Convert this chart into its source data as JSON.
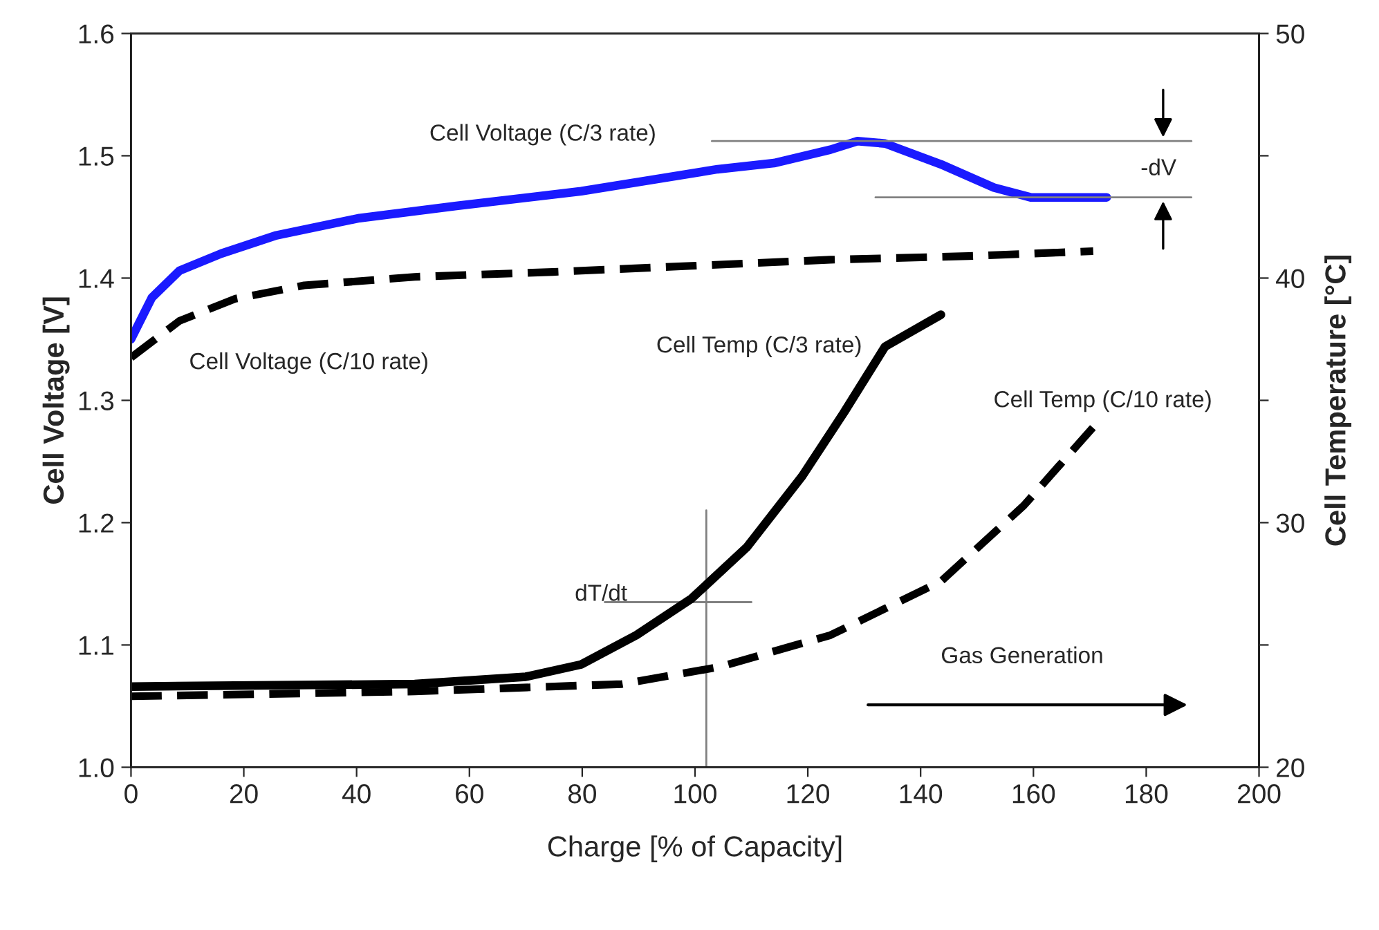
{
  "chart_data": {
    "type": "line",
    "xlabel": "Charge [% of Capacity]",
    "ylabel": "Cell Voltage [V]",
    "y2label": "Cell Temperature [°C]",
    "xlim": [
      0,
      200
    ],
    "xticks": [
      0,
      20,
      40,
      60,
      80,
      100,
      120,
      140,
      160,
      180,
      200
    ],
    "ylim": [
      1.0,
      1.6
    ],
    "yticks": [
      {
        "value": 1.0,
        "label": "1.0"
      },
      1.1,
      1.2,
      1.3,
      1.4,
      1.5,
      1.6
    ],
    "y2lim": [
      20,
      50
    ],
    "y2ticks": [
      20,
      {
        "value": 25,
        "label": null
      },
      30,
      {
        "value": 35,
        "label": null
      },
      40,
      {
        "value": 45,
        "label": null
      },
      50
    ],
    "grid": false,
    "legend": false,
    "marker": "none",
    "series": [
      {
        "name": "Cell Voltage (C/3 rate)",
        "color": "#1a1aff",
        "line_style": "solid",
        "x": [
          0,
          3.7,
          8.6,
          16,
          25.8,
          40.5,
          57.7,
          79.8,
          104,
          114,
          124,
          128.8,
          133.7,
          143.6,
          153,
          159.5,
          173
        ],
        "values": [
          1.35,
          1.384,
          1.406,
          1.42,
          1.435,
          1.449,
          1.459,
          1.471,
          1.489,
          1.494,
          1.505,
          1.512,
          1.51,
          1.493,
          1.474,
          1.466,
          1.466
        ]
      },
      {
        "name": "Cell Voltage (C/10 rate)",
        "color": "#000000",
        "line_style": "dashed",
        "x": [
          0,
          8.6,
          18.4,
          30.7,
          50.3,
          74.8,
          99.4,
          124,
          148.5,
          170.6
        ],
        "values": [
          1.335,
          1.365,
          1.383,
          1.394,
          1.401,
          1.405,
          1.41,
          1.415,
          1.418,
          1.422
        ]
      },
      {
        "name": "Cell Temp (C/3 rate)",
        "color": "#000000",
        "line_style": "solid",
        "axis": "y2",
        "x": [
          0,
          50.3,
          70,
          79.8,
          89.6,
          99.4,
          109.2,
          119,
          126.4,
          133.7,
          143.6
        ],
        "values": [
          23.3,
          23.4,
          23.7,
          24.2,
          25.4,
          26.9,
          29.0,
          31.9,
          34.5,
          37.2,
          38.5
        ]
      },
      {
        "name": "Cell Temp (C/10 rate)",
        "color": "#000000",
        "line_style": "dashed",
        "axis": "y2",
        "x": [
          0,
          50.3,
          87,
          104.3,
          124,
          143.6,
          158.3,
          170.6
        ],
        "values": [
          22.9,
          23.1,
          23.4,
          24.1,
          25.4,
          27.6,
          30.7,
          33.9
        ]
      }
    ],
    "annotations": [
      "-dV",
      "dT/dt",
      "Gas Generation"
    ]
  }
}
